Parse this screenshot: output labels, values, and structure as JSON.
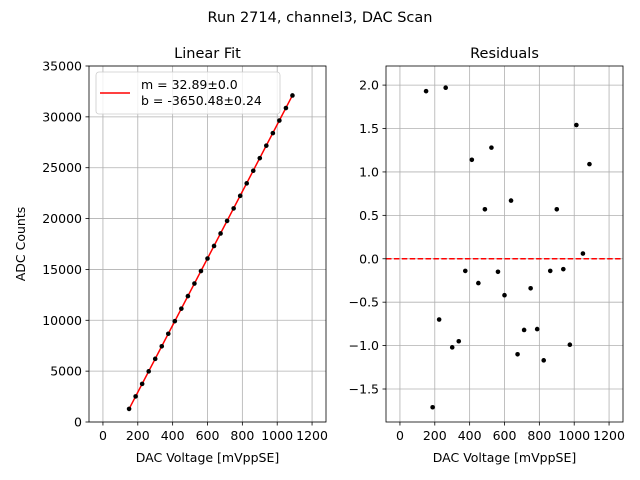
{
  "figure": {
    "title": "Run 2714, channel3, DAC Scan"
  },
  "colors": {
    "fit_line": "#ff0000",
    "points": "#000000",
    "zero_line": "#ff0000",
    "grid": "#b0b0b0"
  },
  "chart_data": [
    {
      "type": "scatter",
      "title": "Linear Fit",
      "xlabel": "DAC Voltage [mVppSE]",
      "ylabel": "ADC Counts",
      "xlim": [
        -80,
        1280
      ],
      "ylim": [
        0,
        35000
      ],
      "xticks": [
        0,
        200,
        400,
        600,
        800,
        1000,
        1200
      ],
      "xtick_labels": [
        "0",
        "200",
        "400",
        "600",
        "800",
        "1000",
        "1200"
      ],
      "yticks": [
        0,
        5000,
        10000,
        15000,
        20000,
        25000,
        30000,
        35000
      ],
      "ytick_labels": [
        "0",
        "5000",
        "10000",
        "15000",
        "20000",
        "25000",
        "30000",
        "35000"
      ],
      "grid": true,
      "legend": {
        "placement": "top-left",
        "lines": [
          "m = 32.89±0.0",
          "b = -3650.48±0.24"
        ]
      },
      "fit": {
        "m": 32.89,
        "b": -3650.48
      },
      "x": [
        150,
        187.5,
        225,
        262.5,
        300,
        337.5,
        375,
        412.5,
        450,
        487.5,
        525,
        562.5,
        600,
        637.5,
        675,
        712.5,
        750,
        787.5,
        825,
        862.5,
        900,
        937.5,
        975,
        1012.5,
        1050,
        1087.5
      ],
      "y": [
        1286,
        2514,
        3749,
        4979,
        6210,
        7444,
        8676,
        9914,
        11145,
        12379,
        13614,
        14843,
        16075,
        17309,
        18535,
        19768,
        21001,
        22234,
        23466,
        24701,
        25937,
        27168,
        28400,
        29636,
        30866,
        32101
      ]
    },
    {
      "type": "scatter",
      "title": "Residuals",
      "xlabel": "DAC Voltage [mVppSE]",
      "ylabel": "",
      "xlim": [
        -80,
        1280
      ],
      "ylim": [
        -1.88,
        2.22
      ],
      "xticks": [
        0,
        200,
        400,
        600,
        800,
        1000,
        1200
      ],
      "xtick_labels": [
        "0",
        "200",
        "400",
        "600",
        "800",
        "1000",
        "1200"
      ],
      "yticks": [
        -1.5,
        -1.0,
        -0.5,
        0.0,
        0.5,
        1.0,
        1.5,
        2.0
      ],
      "ytick_labels": [
        "−1.5",
        "−1.0",
        "−0.5",
        "0.0",
        "0.5",
        "1.0",
        "1.5",
        "2.0"
      ],
      "grid": true,
      "zero_line": 0,
      "x": [
        150,
        187.5,
        225,
        262.5,
        300,
        337.5,
        375,
        412.5,
        450,
        487.5,
        525,
        562.5,
        600,
        637.5,
        675,
        712.5,
        750,
        787.5,
        825,
        862.5,
        900,
        937.5,
        975,
        1012.5,
        1050,
        1087.5
      ],
      "y": [
        1.93,
        -1.71,
        -0.7,
        1.97,
        -1.02,
        -0.95,
        -0.14,
        1.14,
        -0.28,
        0.57,
        1.28,
        -0.15,
        -0.42,
        0.67,
        -1.1,
        -0.82,
        -0.34,
        -0.81,
        -1.17,
        -0.14,
        0.57,
        -0.12,
        -0.99,
        1.54,
        0.06,
        1.09
      ]
    }
  ]
}
